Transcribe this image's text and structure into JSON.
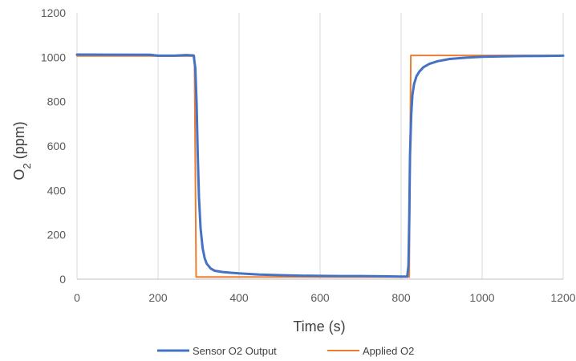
{
  "chart_data": {
    "type": "line",
    "title": "",
    "xlabel": "Time (s)",
    "ylabel_main": "O",
    "ylabel_sub": "2",
    "ylabel_rest": " (ppm)",
    "xlim": [
      0,
      1200
    ],
    "ylim": [
      0,
      1200
    ],
    "x_ticks": [
      0,
      200,
      400,
      600,
      800,
      1000,
      1200
    ],
    "y_ticks": [
      0,
      200,
      400,
      600,
      800,
      1000,
      1200
    ],
    "grid": "vertical",
    "legend_position": "bottom",
    "series": [
      {
        "name": "Sensor O2 Output",
        "color": "#4472C4",
        "x": [
          0,
          180,
          200,
          220,
          240,
          270,
          288,
          292,
          295,
          298,
          301,
          305,
          310,
          315,
          320,
          330,
          340,
          360,
          380,
          400,
          450,
          500,
          550,
          600,
          650,
          700,
          750,
          800,
          815,
          818,
          820,
          822,
          825,
          828,
          832,
          838,
          845,
          855,
          870,
          890,
          920,
          960,
          1000,
          1050,
          1100,
          1150,
          1200
        ],
        "y": [
          1012,
          1011,
          1007,
          1007,
          1007,
          1010,
          1008,
          950,
          800,
          560,
          370,
          230,
          140,
          95,
          70,
          48,
          38,
          32,
          29,
          26,
          21,
          18,
          16,
          15,
          14,
          14,
          13,
          12,
          12,
          60,
          260,
          560,
          740,
          830,
          880,
          915,
          935,
          955,
          970,
          982,
          992,
          998,
          1002,
          1004,
          1005,
          1006,
          1007
        ]
      },
      {
        "name": "Applied O2",
        "color": "#ED7D31",
        "x": [
          0,
          180,
          200,
          270,
          290,
          294,
          820,
          824,
          1200
        ],
        "y": [
          1006,
          1006,
          1005,
          1005,
          1005,
          10,
          10,
          1008,
          1008
        ]
      }
    ]
  }
}
